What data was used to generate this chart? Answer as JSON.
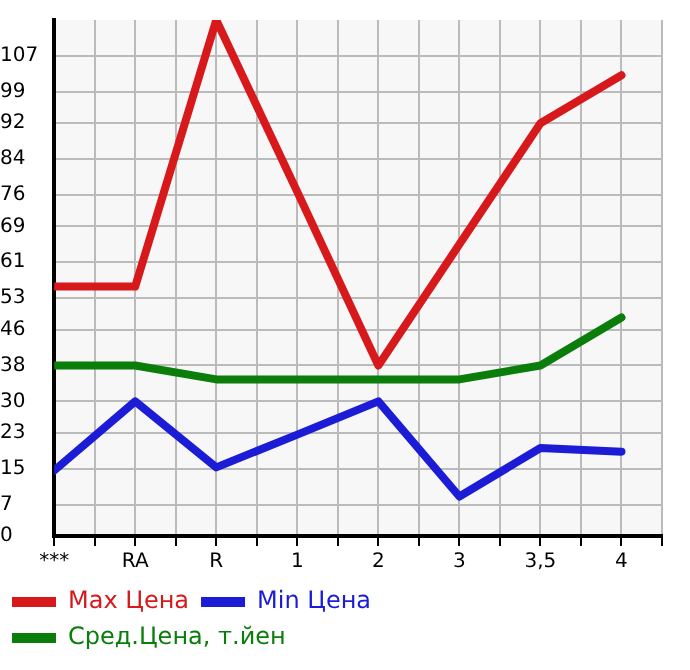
{
  "chart_data": {
    "type": "line",
    "categories": [
      "***",
      "RA",
      "R",
      "1",
      "2",
      "3",
      "3,5",
      "4"
    ],
    "series": [
      {
        "name": "Max Цена",
        "color": "#d7191c",
        "values": [
          55.6,
          55.6,
          115,
          76.7,
          38,
          65,
          92,
          102.7
        ]
      },
      {
        "name": "Min Цена",
        "color": "#1c1cd7",
        "values": [
          14.6,
          30,
          15.3,
          22.6,
          30,
          8.8,
          19.6,
          18.8
        ]
      },
      {
        "name": "Сред.Цена, т.йен",
        "color": "#0b7d0b",
        "values": [
          38,
          38,
          34.9,
          34.9,
          34.9,
          34.9,
          38,
          48.7
        ]
      }
    ],
    "ylim": [
      0,
      115
    ],
    "yticks": [
      0,
      7,
      15,
      23,
      30,
      38,
      46,
      53,
      61,
      69,
      76,
      84,
      92,
      99,
      107
    ],
    "grid": true,
    "legend": "bottom",
    "marker": "none",
    "line_style": "solid"
  }
}
